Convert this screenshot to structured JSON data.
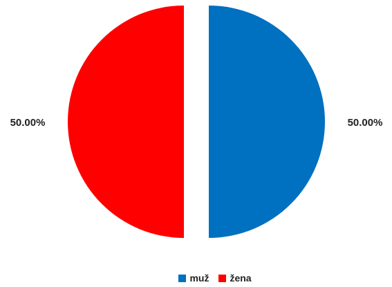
{
  "chart_data": {
    "type": "pie",
    "title": "",
    "categories": [
      "muž",
      "žena"
    ],
    "values": [
      50.0,
      50.0
    ],
    "data_labels": [
      "50.00%",
      "50.00%"
    ],
    "colors": [
      "#0070C0",
      "#FF0000"
    ],
    "exploded": true,
    "legend_position": "bottom"
  },
  "legend": {
    "items": [
      {
        "label": "muž",
        "color": "#0070C0"
      },
      {
        "label": "žena",
        "color": "#FF0000"
      }
    ]
  }
}
